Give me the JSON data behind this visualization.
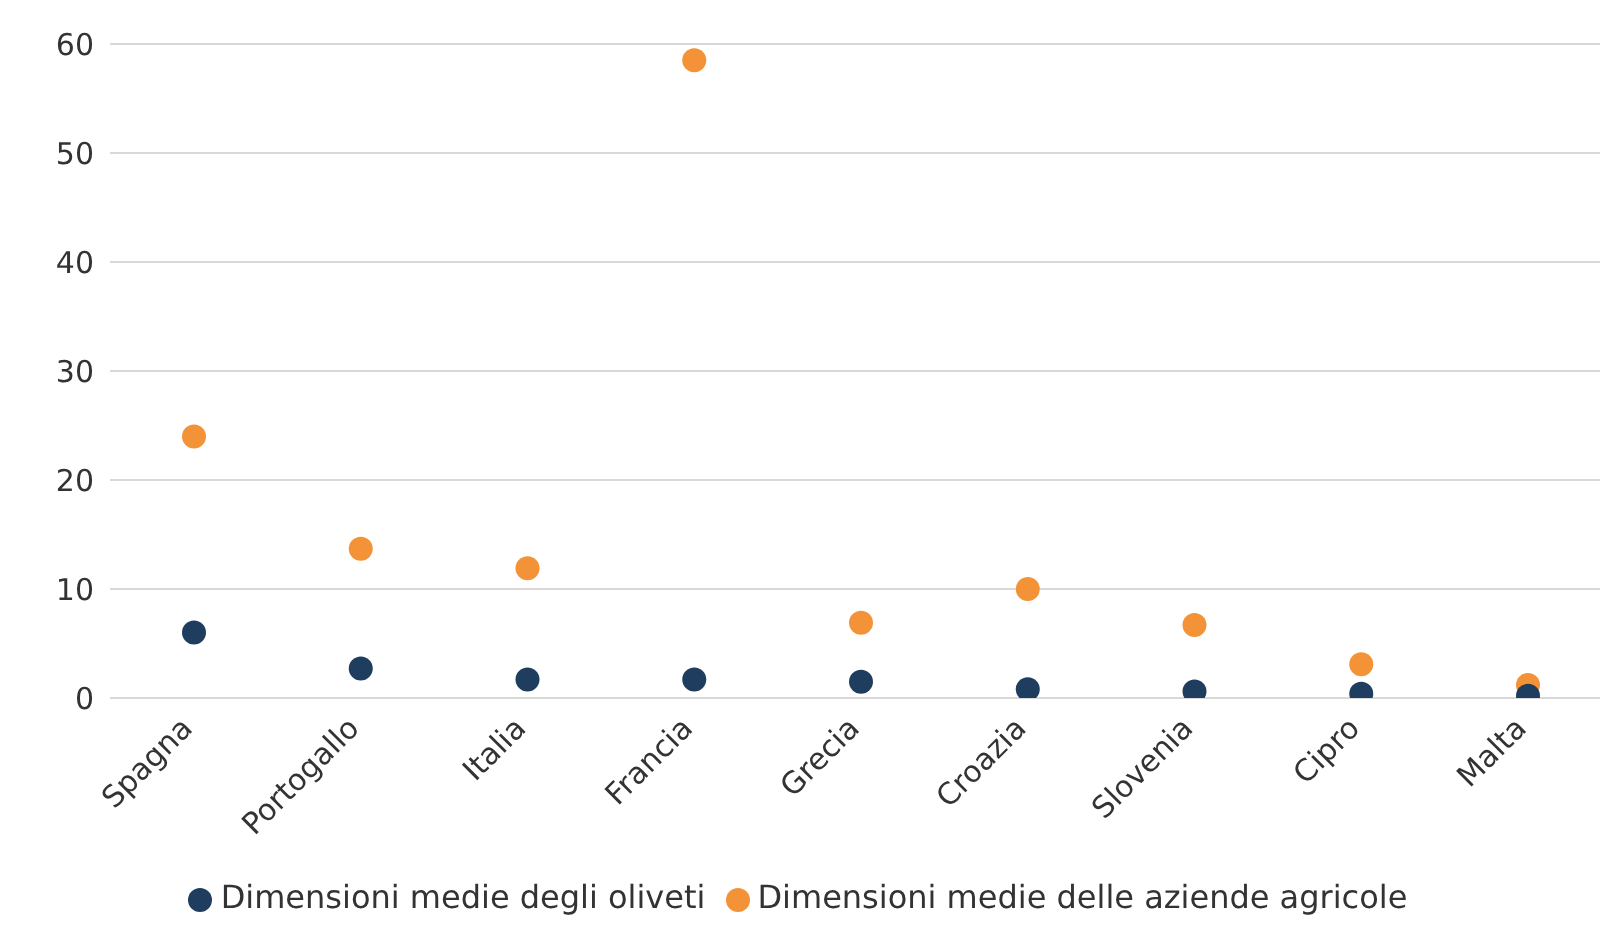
{
  "chart_data": {
    "type": "scatter",
    "categories": [
      "Spagna",
      "Portogallo",
      "Italia",
      "Francia",
      "Grecia",
      "Croazia",
      "Slovenia",
      "Cipro",
      "Malta"
    ],
    "series": [
      {
        "name": "Dimensioni medie degli oliveti",
        "color": "#1f3d5e",
        "values": [
          6.0,
          2.7,
          1.7,
          1.7,
          1.5,
          0.8,
          0.6,
          0.4,
          0.2
        ]
      },
      {
        "name": "Dimensioni medie delle aziende agricole",
        "color": "#f39237",
        "values": [
          24.0,
          13.7,
          11.9,
          58.5,
          6.9,
          10.0,
          6.7,
          3.1,
          1.2
        ]
      }
    ],
    "ylim": [
      0,
      60
    ],
    "yticks": [
      0,
      10,
      20,
      30,
      40,
      50,
      60
    ],
    "grid": "y",
    "legend": "bottom",
    "marker": "circle"
  }
}
